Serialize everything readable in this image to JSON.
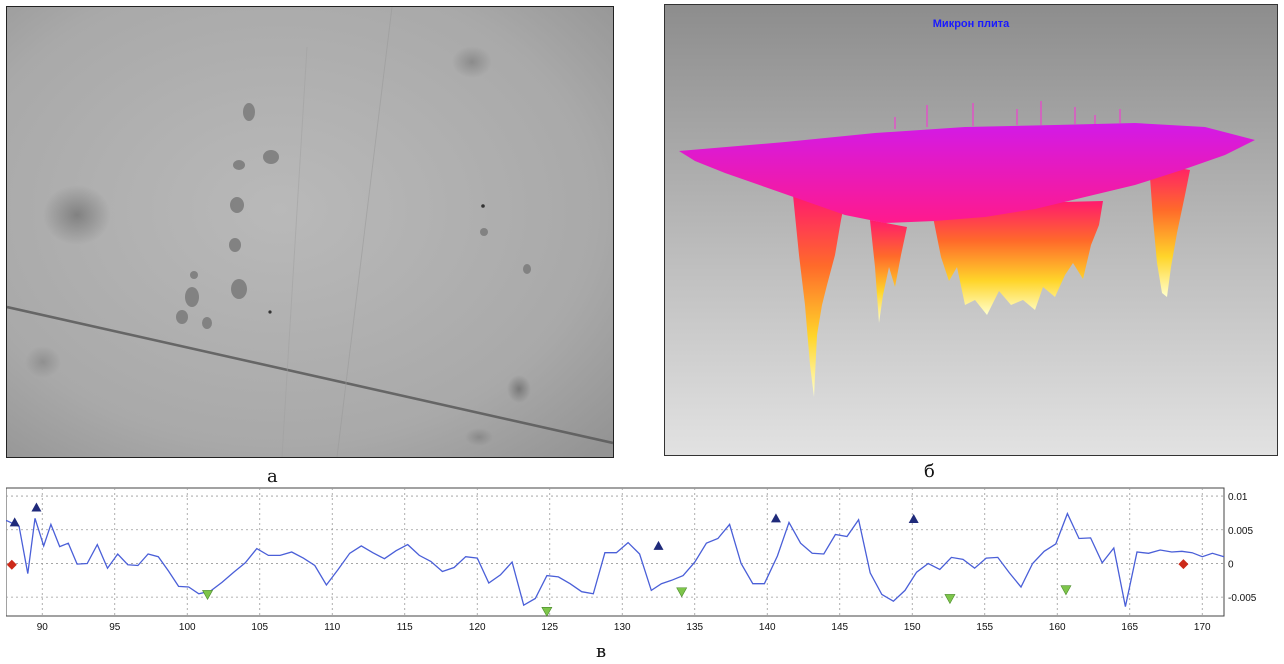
{
  "panels": {
    "a": {
      "label": "а"
    },
    "b": {
      "label": "б",
      "surface_title": "Микрон плита"
    },
    "c": {
      "label": "в"
    }
  },
  "chart_data": {
    "type": "line",
    "title": "",
    "xlabel": "",
    "ylabel": "",
    "xlim": [
      87.5,
      171.5
    ],
    "ylim": [
      -0.0078,
      0.0112
    ],
    "x_ticks": [
      90,
      95,
      100,
      105,
      110,
      115,
      120,
      125,
      130,
      135,
      140,
      145,
      150,
      155,
      160,
      165,
      170
    ],
    "x_tick_labels": [
      "90",
      "95",
      "100",
      "105",
      "110",
      "115",
      "120",
      "125",
      "130",
      "135",
      "140",
      "145",
      "150",
      "155",
      "160",
      "165",
      "170"
    ],
    "y_ticks": [
      0.01,
      0.005,
      0,
      -0.005
    ],
    "y_tick_labels": [
      "0.01",
      "0.005",
      "0",
      "-0.005"
    ],
    "grid": true,
    "colors": {
      "line": "#4a5fd8",
      "peak_marker": "#1f2a7a",
      "valley_marker": "#7dc54a",
      "end_marker": "#cc2a1a"
    },
    "series": [
      {
        "x": [
          87.5,
          88.4,
          89.0,
          89.5,
          90.1,
          90.6,
          91.2,
          91.8,
          92.4,
          93.1,
          93.8,
          94.5,
          95.2,
          95.9,
          96.6,
          97.3,
          98.0,
          98.7,
          99.4,
          100.1,
          100.8,
          101.6,
          102.4,
          103.2,
          104.0,
          104.8,
          105.6,
          106.4,
          107.2,
          108.0,
          108.8,
          109.6,
          110.4,
          111.2,
          112.0,
          112.8,
          113.6,
          114.4,
          115.2,
          116.0,
          116.8,
          117.6,
          118.4,
          119.2,
          120.0,
          120.8,
          121.6,
          122.4,
          123.2,
          124.0,
          124.8,
          125.6,
          126.4,
          127.2,
          128.0,
          128.8,
          129.6,
          130.4,
          131.2,
          132.0,
          132.7,
          133.4,
          134.2,
          135.0,
          135.8,
          136.6,
          137.4,
          138.2,
          139.0,
          139.8,
          140.7,
          141.5,
          142.3,
          143.1,
          143.9,
          144.7,
          145.5,
          146.3,
          147.1,
          147.9,
          148.7,
          149.5,
          150.3,
          151.1,
          151.9,
          152.7,
          153.5,
          154.3,
          155.1,
          155.9,
          156.7,
          157.5,
          158.3,
          159.1,
          159.9,
          160.7,
          161.5,
          162.3,
          163.1,
          163.9,
          164.7,
          165.5,
          166.3,
          167.1,
          167.9,
          168.6,
          169.3,
          170.0,
          170.7,
          171.5
        ],
        "y": [
          0.0064,
          0.0055,
          -0.0015,
          0.0067,
          0.0026,
          0.0058,
          0.0025,
          0.003,
          -0.0001,
          0.0,
          0.0028,
          -0.0007,
          0.0014,
          -0.0002,
          -0.0003,
          0.0014,
          0.001,
          -0.0011,
          -0.0034,
          -0.0035,
          -0.0045,
          -0.0041,
          -0.0028,
          -0.0013,
          0.0001,
          0.0022,
          0.0012,
          0.0012,
          0.0017,
          0.0008,
          -0.0003,
          -0.0032,
          -0.0009,
          0.0015,
          0.0026,
          0.0016,
          0.0007,
          0.0019,
          0.0028,
          0.0012,
          0.0003,
          -0.0012,
          -0.0006,
          0.001,
          0.0008,
          -0.0029,
          -0.0017,
          0.0002,
          -0.0062,
          -0.0052,
          -0.0018,
          -0.002,
          -0.003,
          -0.0042,
          -0.0045,
          0.0016,
          0.0016,
          0.0031,
          0.0014,
          -0.004,
          -0.003,
          -0.0025,
          -0.0018,
          0.0002,
          0.003,
          0.0037,
          0.0058,
          0.0,
          -0.003,
          -0.003,
          0.0011,
          0.0061,
          0.003,
          0.0015,
          0.0014,
          0.0043,
          0.004,
          0.0065,
          -0.0014,
          -0.0046,
          -0.0056,
          -0.004,
          -0.0013,
          0.0,
          -0.0009,
          0.0009,
          0.0006,
          -0.0007,
          0.0008,
          0.0009,
          -0.0014,
          -0.0035,
          0.0,
          0.0018,
          0.0029,
          0.0074,
          0.0037,
          0.0038,
          0.0001,
          0.0023,
          -0.0064,
          0.0017,
          0.0015,
          0.002,
          0.0017,
          0.0018,
          0.0016,
          0.001,
          0.0015,
          0.001
        ],
        "peaks": [
          [
            88.1,
            0.0061
          ],
          [
            89.6,
            0.0083
          ],
          [
            132.5,
            0.0026
          ],
          [
            140.6,
            0.0067
          ],
          [
            150.1,
            0.0066
          ]
        ],
        "valleys": [
          [
            101.4,
            -0.0046
          ],
          [
            124.8,
            -0.0071
          ],
          [
            134.1,
            -0.0042
          ],
          [
            152.6,
            -0.0052
          ],
          [
            160.6,
            -0.0039
          ]
        ],
        "endpoints": [
          [
            87.9,
            -0.0002
          ],
          [
            168.7,
            -0.0001
          ]
        ]
      }
    ]
  }
}
